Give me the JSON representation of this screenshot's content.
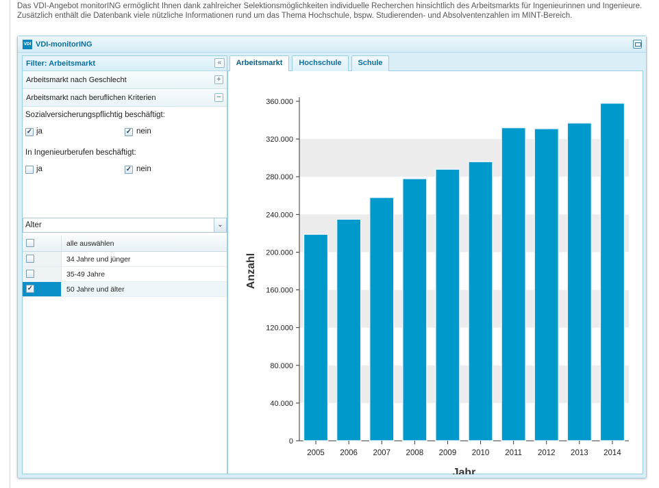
{
  "intro": "Das VDI-Angebot monitorING ermöglicht Ihnen dank zahlreicher Selektionsmöglichkeiten individuelle Recherchen hinsichtlich des Arbeitsmarkts für Ingenieurinnen und Ingenieure. Zusätzlich enthält die Datenbank viele nützliche Informationen rund um das Thema Hochschule, bspw. Studierenden- und Absolventenzahlen im MINT-Bereich.",
  "panel": {
    "logo": "VDI",
    "title": "VDI-monitorING"
  },
  "filter": {
    "title": "Filter: Arbeitsmarkt",
    "collapse_icon": "«",
    "sections": [
      {
        "label": "Arbeitsmarkt nach Geschlecht",
        "toggle": "+"
      },
      {
        "label": "Arbeitsmarkt nach beruflichen Kriterien",
        "toggle": "−"
      }
    ],
    "group1": {
      "label": "Sozialversicherungspflichtig beschäftigt:",
      "opt_ja": "ja",
      "opt_nein": "nein",
      "ja_checked": true,
      "nein_checked": true
    },
    "group2": {
      "label": "In Ingenieurberufen beschäftigt:",
      "opt_ja": "ja",
      "opt_nein": "nein",
      "ja_checked": false,
      "nein_checked": true
    },
    "select": {
      "value": "Alter",
      "arrow": "⌄"
    },
    "grid": {
      "header": "alle auswählen",
      "rows": [
        {
          "label": "34 Jahre und jünger",
          "checked": false
        },
        {
          "label": "35-49 Jahre",
          "checked": false
        },
        {
          "label": "50 Jahre und älter",
          "checked": true
        }
      ]
    }
  },
  "tabs": [
    {
      "label": "Arbeitsmarkt",
      "active": true
    },
    {
      "label": "Hochschule",
      "active": false
    },
    {
      "label": "Schule",
      "active": false
    }
  ],
  "chart_data": {
    "type": "bar",
    "categories": [
      "2005",
      "2006",
      "2007",
      "2008",
      "2009",
      "2010",
      "2011",
      "2012",
      "2013",
      "2014"
    ],
    "values": [
      219000,
      235000,
      258000,
      278000,
      288000,
      296000,
      332000,
      331000,
      337000,
      358000
    ],
    "xlabel": "Jahr",
    "ylabel": "Anzahl",
    "ylim": [
      0,
      360000
    ],
    "yticks": [
      "0",
      "40.000",
      "80.000",
      "120.000",
      "160.000",
      "200.000",
      "240.000",
      "280.000",
      "320.000",
      "360.000"
    ],
    "bar_color": "#0099cc",
    "band_color": "#ececec",
    "grid": "alternating horizontal bands"
  }
}
